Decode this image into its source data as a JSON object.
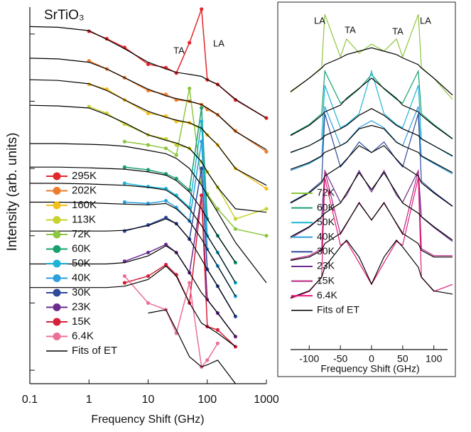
{
  "chart_data": [
    {
      "type": "line",
      "title": "SrTiO₃",
      "xlabel": "Frequency Shift (GHz)",
      "ylabel": "Intensity (arb. units)",
      "xscale": "log",
      "xlim": [
        0.1,
        1000
      ],
      "xticks": [
        0.1,
        1,
        10,
        100,
        1000
      ],
      "ylim": [
        0,
        5.6
      ],
      "yticks": [
        0.2,
        1.2,
        2.2,
        3.2,
        4.2,
        5.2
      ],
      "markers": true,
      "annotations": [
        "TA",
        "LA"
      ],
      "x": [
        0.1,
        0.3,
        1,
        2,
        4,
        10,
        20,
        30,
        50,
        80,
        100,
        150,
        300,
        1000
      ],
      "series": [
        {
          "name": "295K",
          "color": "#e3262a",
          "values": [
            null,
            null,
            5.24,
            5.13,
            5.0,
            4.75,
            4.7,
            4.62,
            5.07,
            5.57,
            4.52,
            4.45,
            4.22,
            3.95
          ]
        },
        {
          "name": "202K",
          "color": "#ee7d2b",
          "values": [
            null,
            null,
            4.8,
            4.68,
            4.55,
            4.36,
            4.3,
            4.22,
            4.2,
            4.15,
            4.08,
            4.0,
            3.76,
            3.45
          ]
        },
        {
          "name": "160K",
          "color": "#f2c01b",
          "values": [
            null,
            null,
            4.45,
            4.38,
            4.22,
            4.02,
            3.98,
            3.9,
            3.88,
            3.78,
            3.7,
            3.55,
            3.2,
            2.9
          ]
        },
        {
          "name": "113K",
          "color": "#c8d22e",
          "values": [
            null,
            null,
            4.12,
            4.02,
            3.86,
            3.7,
            3.64,
            3.55,
            3.5,
            3.3,
            3.15,
            2.92,
            2.45,
            2.6
          ]
        },
        {
          "name": "72K",
          "color": "#8dc63f",
          "values": [
            null,
            null,
            null,
            null,
            3.6,
            3.55,
            3.5,
            3.4,
            4.39,
            3.0,
            2.82,
            2.6,
            2.3,
            2.2
          ]
        },
        {
          "name": "60K",
          "color": "#17a06e",
          "values": [
            null,
            null,
            null,
            null,
            3.22,
            3.18,
            3.12,
            3.05,
            2.88,
            4.1,
            2.45,
            2.2,
            1.8,
            null
          ]
        },
        {
          "name": "50K",
          "color": "#1cb3d6",
          "values": [
            null,
            null,
            null,
            null,
            2.98,
            2.93,
            2.9,
            2.8,
            2.62,
            3.9,
            2.2,
            1.95,
            1.5,
            null
          ]
        },
        {
          "name": "40K",
          "color": "#2aa0de",
          "values": [
            null,
            null,
            null,
            null,
            2.7,
            2.68,
            2.72,
            2.62,
            2.42,
            3.6,
            2.0,
            1.75,
            1.3,
            null
          ]
        },
        {
          "name": "30K",
          "color": "#2e4a9b",
          "values": [
            null,
            null,
            null,
            null,
            2.27,
            2.36,
            2.47,
            2.38,
            2.15,
            3.2,
            1.7,
            1.45,
            1.0,
            null
          ]
        },
        {
          "name": "23K",
          "color": "#6c2c8e",
          "values": [
            null,
            null,
            null,
            null,
            1.82,
            1.95,
            2.07,
            1.95,
            1.65,
            2.8,
            1.25,
            1.05,
            0.7,
            null
          ]
        },
        {
          "name": "15K",
          "color": "#d71f3a",
          "values": [
            null,
            null,
            null,
            null,
            1.5,
            1.6,
            1.77,
            1.62,
            1.2,
            2.8,
            0.85,
            0.8,
            0.55,
            null
          ]
        },
        {
          "name": "6.4K",
          "color": "#ec6f96",
          "values": [
            null,
            null,
            null,
            null,
            1.6,
            1.2,
            1.1,
            0.75,
            1.5,
            0.25,
            0.35,
            0.6,
            null,
            null
          ]
        }
      ],
      "fits": {
        "name": "Fits of ET",
        "color": "#000000",
        "curves": [
          [
            5.31,
            5.3,
            5.25,
            5.12,
            4.98,
            4.78,
            4.68,
            4.63,
            4.6,
            4.57,
            4.52,
            4.45,
            4.23,
            3.95
          ],
          [
            4.84,
            4.83,
            4.78,
            4.68,
            4.55,
            4.38,
            4.28,
            4.24,
            4.2,
            4.15,
            4.1,
            4.0,
            3.75,
            3.48
          ],
          [
            4.52,
            4.51,
            4.46,
            4.36,
            4.22,
            4.05,
            3.96,
            3.92,
            3.88,
            3.8,
            3.7,
            3.55,
            3.2,
            2.95
          ],
          [
            4.14,
            4.13,
            4.1,
            4.0,
            3.88,
            3.7,
            3.62,
            3.58,
            3.5,
            3.3,
            3.15,
            2.92,
            2.6,
            2.55
          ],
          [
            3.57,
            3.57,
            3.56,
            3.55,
            3.53,
            3.47,
            3.42,
            3.35,
            3.2,
            2.95,
            2.8,
            2.55,
            2.1,
            1.5
          ],
          [
            3.22,
            3.22,
            3.21,
            3.2,
            3.19,
            3.15,
            3.1,
            3.02,
            2.85,
            2.6,
            2.45,
            2.2,
            1.8,
            null
          ],
          [
            2.98,
            2.98,
            2.97,
            2.96,
            2.95,
            2.92,
            2.88,
            2.78,
            2.6,
            2.35,
            2.2,
            1.95,
            1.5,
            null
          ],
          [
            2.7,
            2.7,
            2.69,
            2.68,
            2.67,
            2.66,
            2.68,
            2.6,
            2.42,
            2.15,
            2.0,
            1.75,
            1.3,
            null
          ],
          [
            2.27,
            2.27,
            2.27,
            2.27,
            2.28,
            2.35,
            2.45,
            2.38,
            2.15,
            1.85,
            1.7,
            1.45,
            1.0,
            null
          ],
          [
            1.78,
            1.78,
            1.78,
            1.78,
            1.8,
            1.9,
            2.05,
            1.95,
            1.65,
            1.35,
            1.25,
            1.05,
            0.7,
            null
          ],
          [
            1.43,
            1.43,
            1.43,
            1.43,
            1.45,
            1.55,
            1.75,
            1.6,
            1.2,
            0.9,
            0.85,
            0.75,
            0.55,
            null
          ],
          [
            null,
            null,
            null,
            null,
            null,
            1.05,
            1.1,
            0.8,
            0.4,
            0.25,
            0.28,
            0.35,
            0.0,
            null
          ]
        ]
      }
    },
    {
      "type": "line",
      "xlabel": "Frequency Shift (GHz)",
      "xlim": [
        -130,
        130
      ],
      "xticks": [
        -100,
        -50,
        0,
        50,
        100
      ],
      "ylim": [
        0,
        100
      ],
      "markers": false,
      "annotations": [
        "LA",
        "TA",
        "TA",
        "LA"
      ],
      "x": [
        -130,
        -100,
        -80,
        -75,
        -50,
        -40,
        -20,
        0,
        20,
        40,
        50,
        75,
        80,
        100,
        130
      ],
      "series": [
        {
          "name": "72K",
          "color": "#8dc63f",
          "values": [
            75.8,
            80.0,
            83.2,
            98.9,
            86.3,
            91.6,
            87.4,
            90.1,
            88.0,
            91.6,
            86.3,
            98.9,
            83.2,
            80.0,
            73.7
          ]
        },
        {
          "name": "60K",
          "color": "#17a06e",
          "values": [
            63.2,
            66.3,
            69.5,
            82.1,
            72.6,
            73.7,
            76.8,
            81.1,
            76.8,
            73.7,
            72.6,
            82.1,
            69.5,
            66.3,
            62.1
          ]
        },
        {
          "name": "50K",
          "color": "#1cb3d6",
          "values": [
            57.9,
            60.0,
            62.1,
            77.9,
            65.3,
            66.3,
            69.5,
            82.1,
            69.5,
            66.3,
            65.3,
            77.9,
            62.1,
            60.0,
            56.8
          ]
        },
        {
          "name": "40K",
          "color": "#2aa0de",
          "values": [
            52.6,
            54.7,
            56.8,
            71.6,
            60.0,
            61.1,
            65.3,
            67.4,
            65.3,
            61.1,
            60.0,
            71.6,
            56.8,
            54.7,
            51.6
          ]
        },
        {
          "name": "30K",
          "color": "#2e4a9b",
          "values": [
            43.2,
            46.3,
            49.5,
            69.5,
            53.7,
            55.8,
            61.1,
            57.9,
            61.1,
            55.8,
            53.7,
            69.5,
            49.5,
            46.3,
            42.1
          ]
        },
        {
          "name": "23K",
          "color": "#6c2c8e",
          "values": [
            32.6,
            35.8,
            38.9,
            52.6,
            43.2,
            45.3,
            52.6,
            46.3,
            52.6,
            45.3,
            43.2,
            52.6,
            38.9,
            35.8,
            31.6
          ]
        },
        {
          "name": "15K",
          "color": "#b5237f",
          "values": [
            26.3,
            27.4,
            29.5,
            52.6,
            33.7,
            36.8,
            43.2,
            37.9,
            43.2,
            36.8,
            33.7,
            52.6,
            29.5,
            27.4,
            27.4
          ]
        },
        {
          "name": "6.4K",
          "color": "#e4197a",
          "values": [
            14.7,
            16.8,
            21.1,
            50.5,
            30.5,
            31.6,
            25.3,
            18.9,
            25.3,
            31.6,
            30.5,
            50.5,
            21.1,
            16.8,
            18.9
          ]
        }
      ],
      "fits": {
        "name": "Fits of ET",
        "color": "#000000",
        "curves": [
          [
            76,
            80,
            83,
            84,
            86,
            87,
            88,
            89,
            88,
            87,
            86,
            84,
            83,
            80,
            75
          ],
          [
            63,
            66,
            69,
            70,
            72,
            74,
            77,
            80,
            77,
            74,
            72,
            70,
            69,
            66,
            62
          ],
          [
            58,
            60,
            62,
            63,
            65,
            66,
            69,
            71,
            69,
            66,
            65,
            63,
            62,
            60,
            57
          ],
          [
            53,
            55,
            57,
            58,
            60,
            61,
            65,
            66,
            65,
            61,
            60,
            58,
            57,
            55,
            52
          ],
          [
            43,
            46,
            49,
            51,
            54,
            56,
            60,
            58,
            60,
            56,
            54,
            51,
            49,
            46,
            42
          ],
          [
            33,
            36,
            39,
            40,
            43,
            46,
            52,
            47,
            52,
            46,
            43,
            40,
            39,
            36,
            32
          ],
          [
            26,
            27,
            29,
            31,
            34,
            37,
            43,
            38,
            43,
            37,
            34,
            31,
            29,
            27,
            27
          ],
          [
            15,
            17,
            21,
            24,
            30,
            32,
            27,
            19,
            27,
            32,
            30,
            24,
            21,
            17,
            16
          ]
        ]
      }
    }
  ]
}
